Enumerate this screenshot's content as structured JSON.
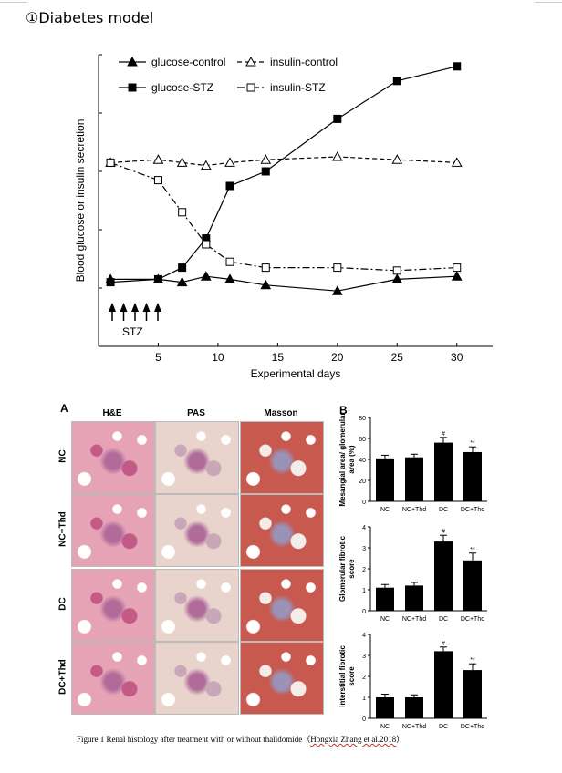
{
  "heading": "①Diabetes model",
  "chart_data": [
    {
      "type": "line",
      "ylabel": "Blood glucose or insulin secretion",
      "xlabel": "Experimental days",
      "x_ticks": [
        5,
        10,
        15,
        20,
        25,
        30
      ],
      "xlim": [
        0,
        33
      ],
      "ylim": [
        0,
        10
      ],
      "series": [
        {
          "name": "glucose-control",
          "marker": "filled-triangle",
          "line": "solid",
          "x": [
            1,
            5,
            7,
            9,
            11,
            14,
            20,
            25,
            30
          ],
          "y": [
            2.3,
            2.3,
            2.2,
            2.4,
            2.3,
            2.1,
            1.9,
            2.3,
            2.4
          ]
        },
        {
          "name": "insulin-control",
          "marker": "open-triangle",
          "line": "dashed",
          "x": [
            1,
            5,
            7,
            9,
            11,
            14,
            20,
            25,
            30
          ],
          "y": [
            6.3,
            6.4,
            6.3,
            6.2,
            6.3,
            6.4,
            6.5,
            6.4,
            6.3
          ]
        },
        {
          "name": "glucose-STZ",
          "marker": "filled-square",
          "line": "solid",
          "x": [
            1,
            5,
            7,
            9,
            11,
            14,
            20,
            25,
            30
          ],
          "y": [
            2.2,
            2.3,
            2.7,
            3.7,
            5.5,
            6.0,
            7.8,
            9.1,
            9.6
          ]
        },
        {
          "name": "insulin-STZ",
          "marker": "open-square",
          "line": "dashdot",
          "x": [
            1,
            5,
            7,
            9,
            11,
            14,
            20,
            25,
            30
          ],
          "y": [
            6.3,
            5.7,
            4.6,
            3.5,
            2.9,
            2.7,
            2.7,
            2.6,
            2.7
          ]
        }
      ],
      "annotation": {
        "label": "STZ",
        "arrow_days": [
          1,
          2,
          3,
          4,
          5
        ]
      }
    },
    {
      "type": "bar",
      "ylabel": "Mesangial area/ glomerular area (%)",
      "categories": [
        "NC",
        "NC+Thd",
        "DC",
        "DC+Thd"
      ],
      "values": [
        41,
        42,
        56,
        47
      ],
      "errors": [
        3,
        3,
        5,
        5
      ],
      "marks": [
        "",
        "",
        "#",
        "**"
      ],
      "ylim": [
        0,
        80
      ],
      "yticks": [
        0,
        20,
        40,
        60,
        80
      ]
    },
    {
      "type": "bar",
      "ylabel": "Glomerular fibrotic score",
      "categories": [
        "NC",
        "NC+Thd",
        "DC",
        "DC+Thd"
      ],
      "values": [
        1.1,
        1.2,
        3.3,
        2.4
      ],
      "errors": [
        0.15,
        0.15,
        0.3,
        0.35
      ],
      "marks": [
        "",
        "",
        "#",
        "**"
      ],
      "ylim": [
        0,
        4
      ],
      "yticks": [
        0,
        1,
        2,
        3,
        4
      ]
    },
    {
      "type": "bar",
      "ylabel": "Interstitial fibrotic score",
      "categories": [
        "NC",
        "NC+Thd",
        "DC",
        "DC+Thd"
      ],
      "values": [
        1.0,
        1.0,
        3.2,
        2.3
      ],
      "errors": [
        0.15,
        0.12,
        0.2,
        0.3
      ],
      "marks": [
        "",
        "",
        "#",
        "**"
      ],
      "ylim": [
        0,
        4
      ],
      "yticks": [
        0,
        1,
        2,
        3,
        4
      ]
    }
  ],
  "histology": {
    "panel_label": "A",
    "bar_panel_label": "B",
    "columns": [
      "H&E",
      "PAS",
      "Masson"
    ],
    "rows": [
      "NC",
      "NC+Thd",
      "DC",
      "DC+Thd"
    ],
    "stain_colors": {
      "he": "#e7a3b6",
      "pas": "#e8d4cc",
      "masson": "#c7594f"
    }
  },
  "caption": {
    "text": "Figure 1 Renal histology after treatment with or without thalidomide（",
    "cite": "Hongxia Zhang et al.2018",
    "close": "）"
  }
}
